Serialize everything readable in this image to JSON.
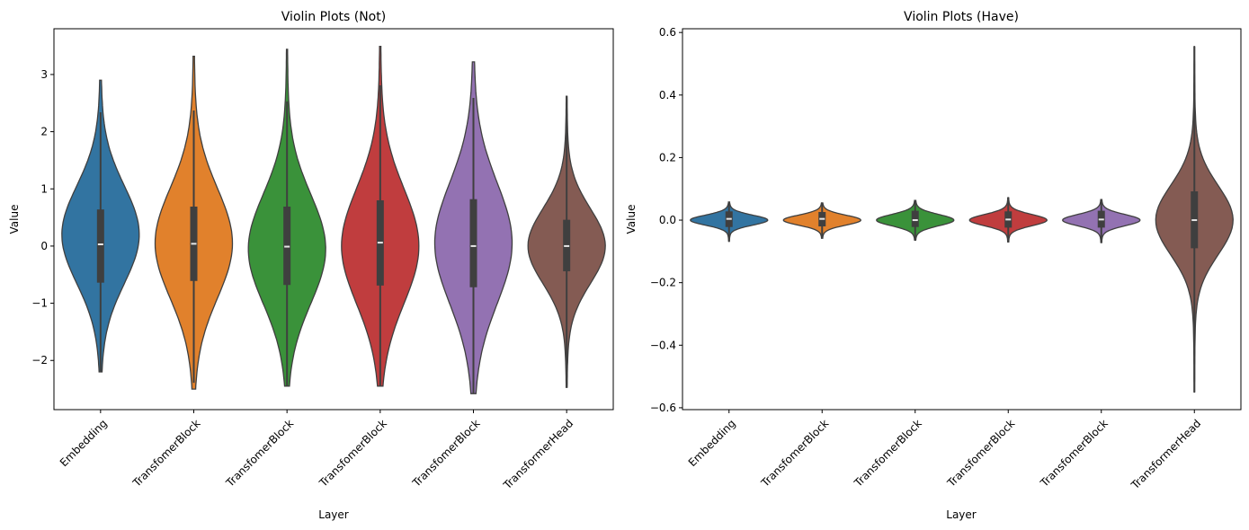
{
  "chart_data": [
    {
      "type": "violin",
      "title": "Violin Plots (Not)",
      "xlabel": "Layer",
      "ylabel": "Value",
      "ylim": [
        -2.86,
        3.8
      ],
      "yticks": [
        -2,
        -1,
        0,
        1,
        2,
        3
      ],
      "ytick_labels": [
        "−2",
        "−1",
        "0",
        "1",
        "2",
        "3"
      ],
      "grid": false,
      "categories": [
        "Embedding",
        "TransfomerBlock",
        "TransfomerBlock",
        "TransfomerBlock",
        "TransfomerBlock",
        "TransformerHead"
      ],
      "colors": [
        "#3274a1",
        "#e1812c",
        "#3a923a",
        "#c03d3e",
        "#9372b2",
        "#845b53"
      ],
      "series": [
        {
          "name": "Embedding",
          "min": -2.2,
          "max": 2.9,
          "q1": -0.64,
          "median": 0.03,
          "q3": 0.64,
          "whisker_low": -2.2,
          "whisker_high": 2.34,
          "peak": 0.2,
          "spread": 0.85
        },
        {
          "name": "TransfomerBlock",
          "min": -2.5,
          "max": 3.32,
          "q1": -0.61,
          "median": 0.04,
          "q3": 0.69,
          "whisker_low": -2.39,
          "whisker_high": 2.37,
          "peak": 0.05,
          "spread": 0.95
        },
        {
          "name": "TransfomerBlock",
          "min": -2.45,
          "max": 3.44,
          "q1": -0.68,
          "median": -0.01,
          "q3": 0.69,
          "whisker_low": -2.45,
          "whisker_high": 2.53,
          "peak": -0.05,
          "spread": 0.95
        },
        {
          "name": "TransfomerBlock",
          "min": -2.45,
          "max": 3.49,
          "q1": -0.69,
          "median": 0.06,
          "q3": 0.8,
          "whisker_low": -2.45,
          "whisker_high": 2.81,
          "peak": 0.0,
          "spread": 1.0
        },
        {
          "name": "TransfomerBlock",
          "min": -2.58,
          "max": 3.22,
          "q1": -0.72,
          "median": 0.0,
          "q3": 0.82,
          "whisker_low": -2.58,
          "whisker_high": 2.59,
          "peak": 0.05,
          "spread": 1.05
        },
        {
          "name": "TransformerHead",
          "min": -2.47,
          "max": 2.62,
          "q1": -0.44,
          "median": 0.0,
          "q3": 0.46,
          "whisker_low": -2.47,
          "whisker_high": 2.62,
          "peak": 0.0,
          "spread": 0.65
        }
      ]
    },
    {
      "type": "violin",
      "title": "Violin Plots (Have)",
      "xlabel": "Layer",
      "ylabel": "Value",
      "ylim": [
        -0.606,
        0.612
      ],
      "yticks": [
        -0.6,
        -0.4,
        -0.2,
        0.0,
        0.2,
        0.4,
        0.6
      ],
      "ytick_labels": [
        "−0.6",
        "−0.4",
        "−0.2",
        "0.0",
        "0.2",
        "0.4",
        "0.6"
      ],
      "grid": false,
      "categories": [
        "Embedding",
        "TransfomerBlock",
        "TransfomerBlock",
        "TransfomerBlock",
        "TransfomerBlock",
        "TransformerHead"
      ],
      "colors": [
        "#3274a1",
        "#e1812c",
        "#3a923a",
        "#c03d3e",
        "#9372b2",
        "#845b53"
      ],
      "series": [
        {
          "name": "Embedding",
          "min": -0.068,
          "max": 0.058,
          "q1": -0.022,
          "median": 0.004,
          "q3": 0.028,
          "whisker_low": -0.068,
          "whisker_high": 0.058,
          "peak": 0.0,
          "spread": 0.016
        },
        {
          "name": "TransfomerBlock",
          "min": -0.058,
          "max": 0.055,
          "q1": -0.02,
          "median": 0.004,
          "q3": 0.026,
          "whisker_low": -0.058,
          "whisker_high": 0.055,
          "peak": 0.0,
          "spread": 0.016
        },
        {
          "name": "TransfomerBlock",
          "min": -0.064,
          "max": 0.063,
          "q1": -0.022,
          "median": 0.0,
          "q3": 0.03,
          "whisker_low": -0.064,
          "whisker_high": 0.063,
          "peak": 0.0,
          "spread": 0.018
        },
        {
          "name": "TransfomerBlock",
          "min": -0.07,
          "max": 0.072,
          "q1": -0.024,
          "median": 0.002,
          "q3": 0.028,
          "whisker_low": -0.07,
          "whisker_high": 0.072,
          "peak": 0.0,
          "spread": 0.018
        },
        {
          "name": "TransfomerBlock",
          "min": -0.072,
          "max": 0.066,
          "q1": -0.024,
          "median": 0.002,
          "q3": 0.03,
          "whisker_low": -0.072,
          "whisker_high": 0.066,
          "peak": 0.0,
          "spread": 0.018
        },
        {
          "name": "TransformerHead",
          "min": -0.55,
          "max": 0.555,
          "q1": -0.09,
          "median": 0.0,
          "q3": 0.092,
          "whisker_low": -0.55,
          "whisker_high": 0.555,
          "peak": 0.0,
          "spread": 0.11
        }
      ]
    }
  ]
}
